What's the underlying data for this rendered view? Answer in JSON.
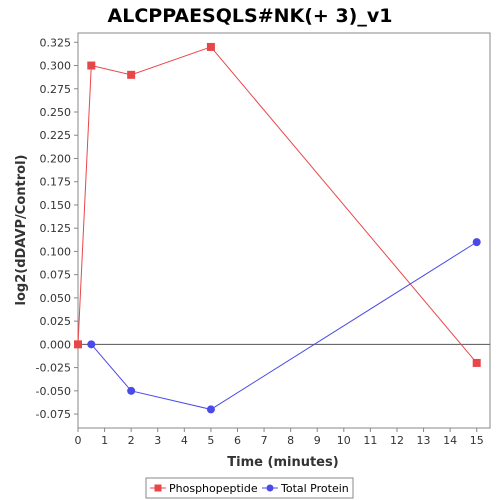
{
  "chart_data": {
    "type": "line",
    "title": "ALCPPAESQLS#NK(+ 3)_v1",
    "xlabel": "Time (minutes)",
    "ylabel": "log2(dDAVP/Control)",
    "xlim": [
      0,
      15.5
    ],
    "ylim": [
      -0.09,
      0.335
    ],
    "x_ticks": [
      0,
      1,
      2,
      3,
      4,
      5,
      6,
      7,
      8,
      9,
      10,
      11,
      12,
      13,
      14,
      15
    ],
    "y_ticks": [
      -0.075,
      -0.05,
      -0.025,
      0.0,
      0.025,
      0.05,
      0.075,
      0.1,
      0.125,
      0.15,
      0.175,
      0.2,
      0.225,
      0.25,
      0.275,
      0.3,
      0.325
    ],
    "y_tick_labels": [
      "-0.075",
      "-0.050",
      "-0.025",
      "0.000",
      "0.025",
      "0.050",
      "0.075",
      "0.100",
      "0.125",
      "0.150",
      "0.175",
      "0.200",
      "0.225",
      "0.250",
      "0.275",
      "0.300",
      "0.325"
    ],
    "zero_line": true,
    "grid": false,
    "legend_position": "bottom",
    "series": [
      {
        "name": "Phosphopeptide",
        "color": "#e8474a",
        "marker": "square",
        "x": [
          0,
          0.5,
          2,
          5,
          15
        ],
        "y": [
          0.0,
          0.3,
          0.29,
          0.32,
          -0.02
        ]
      },
      {
        "name": "Total Protein",
        "color": "#4a4ae8",
        "marker": "circle",
        "x": [
          0.5,
          2,
          5,
          15
        ],
        "y": [
          0.0,
          -0.05,
          -0.07,
          0.11
        ]
      }
    ]
  }
}
